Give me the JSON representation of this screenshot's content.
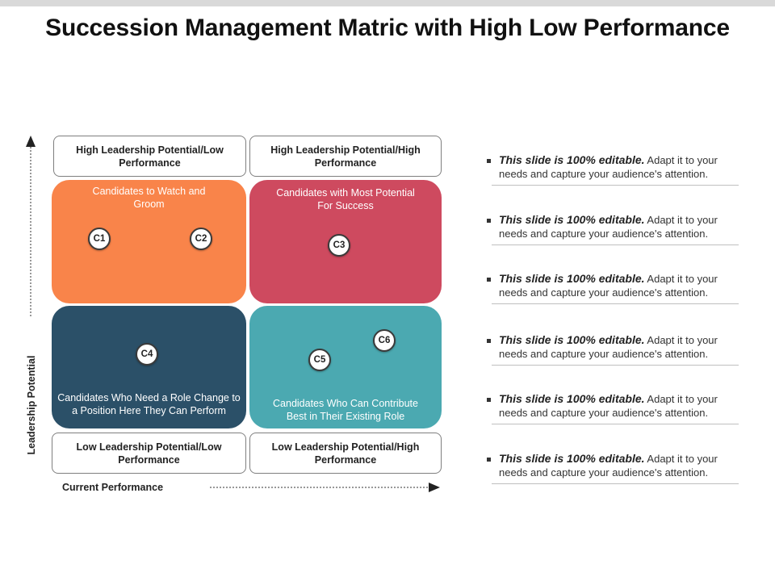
{
  "title": "Succession Management Matric with High Low Performance",
  "axes": {
    "y_label": "Leadership Potential",
    "x_label": "Current Performance"
  },
  "quadrants": {
    "top_left": {
      "header": "High Leadership Potential/Low Performance",
      "text": "Candidates to Watch and Groom",
      "color": "#F9844A",
      "candidates": [
        "C1",
        "C2"
      ]
    },
    "top_right": {
      "header": "High Leadership Potential/High Performance",
      "text": "Candidates with Most Potential For Success",
      "color": "#CE4A5F",
      "candidates": [
        "C3"
      ]
    },
    "bottom_left": {
      "header": "Low Leadership Potential/Low Performance",
      "text": "Candidates Who Need a Role Change to a Position Here They Can Perform",
      "color": "#2B5068",
      "candidates": [
        "C4"
      ]
    },
    "bottom_right": {
      "header": "Low Leadership Potential/High Performance",
      "text": "Candidates Who Can Contribute Best in Their Existing Role",
      "color": "#4BA9B1",
      "candidates": [
        "C5",
        "C6"
      ]
    }
  },
  "bullets": [
    {
      "bold": "This slide is 100% editable.",
      "text": " Adapt it to your needs and capture your audience's attention."
    },
    {
      "bold": "This slide is 100% editable.",
      "text": " Adapt it to your needs and capture your audience's attention."
    },
    {
      "bold": "This slide is 100% editable.",
      "text": " Adapt it to your needs and capture your audience's attention."
    },
    {
      "bold": "This slide is 100% editable.",
      "text": " Adapt it to your needs and capture your audience's attention."
    },
    {
      "bold": "This slide is 100% editable.",
      "text": " Adapt it to your needs and capture your audience's attention."
    },
    {
      "bold": "This slide is 100% editable.",
      "text": " Adapt it to your needs and capture your audience's attention."
    }
  ]
}
